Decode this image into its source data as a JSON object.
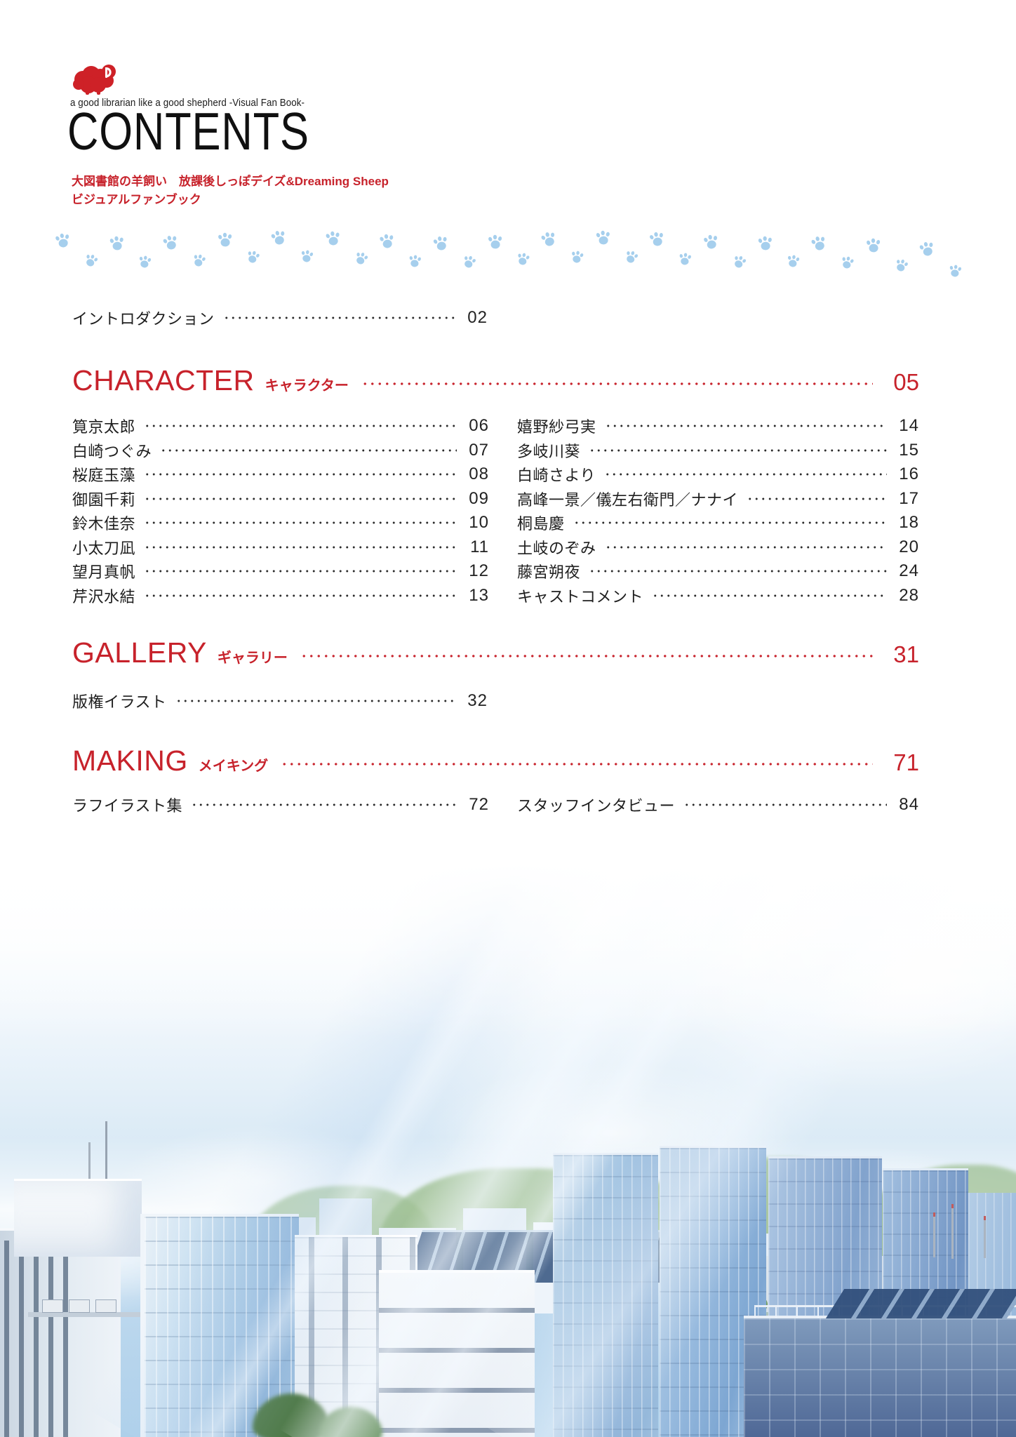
{
  "page": {
    "tagline": "a good librarian like a good shepherd -Visual Fan Book-",
    "title": "CONTENTS",
    "subtitle_line1": "大図書館の羊飼い　放課後しっぽデイズ&Dreaming Sheep",
    "subtitle_line2": "ビジュアルファンブック"
  },
  "colors": {
    "accent_red": "#c7222b",
    "paw_blue": "#a6cfed",
    "text_black": "#1d1d1b"
  },
  "decor": {
    "logo": "sheep-icon",
    "trail": "paw-print-icons",
    "paw_count": 34
  },
  "toc": {
    "intro": {
      "label": "イントロダクション",
      "page": "02"
    },
    "sections": [
      {
        "name": "CHARACTER",
        "name_jp": "キャラクター",
        "page": "05"
      },
      {
        "name": "GALLERY",
        "name_jp": "ギャラリー",
        "page": "31"
      },
      {
        "name": "MAKING",
        "name_jp": "メイキング",
        "page": "71"
      }
    ],
    "character_left": [
      {
        "label": "筧京太郎",
        "page": "06"
      },
      {
        "label": "白崎つぐみ",
        "page": "07"
      },
      {
        "label": "桜庭玉藻",
        "page": "08"
      },
      {
        "label": "御園千莉",
        "page": "09"
      },
      {
        "label": "鈴木佳奈",
        "page": "10"
      },
      {
        "label": "小太刀凪",
        "page": "11"
      },
      {
        "label": "望月真帆",
        "page": "12"
      },
      {
        "label": "芹沢水結",
        "page": "13"
      }
    ],
    "character_right": [
      {
        "label": "嬉野紗弓実",
        "page": "14"
      },
      {
        "label": "多岐川葵",
        "page": "15"
      },
      {
        "label": "白崎さより",
        "page": "16"
      },
      {
        "label": "高峰一景／儀左右衛門／ナナイ",
        "page": "17"
      },
      {
        "label": "桐島慶",
        "page": "18"
      },
      {
        "label": "土岐のぞみ",
        "page": "20"
      },
      {
        "label": "藤宮朔夜",
        "page": "24"
      },
      {
        "label": "キャストコメント",
        "page": "28"
      }
    ],
    "gallery_items": [
      {
        "label": "版権イラスト",
        "page": "32"
      }
    ],
    "making_left": [
      {
        "label": "ラフイラスト集",
        "page": "72"
      }
    ],
    "making_right": [
      {
        "label": "スタッフインタビュー",
        "page": "84"
      }
    ]
  }
}
